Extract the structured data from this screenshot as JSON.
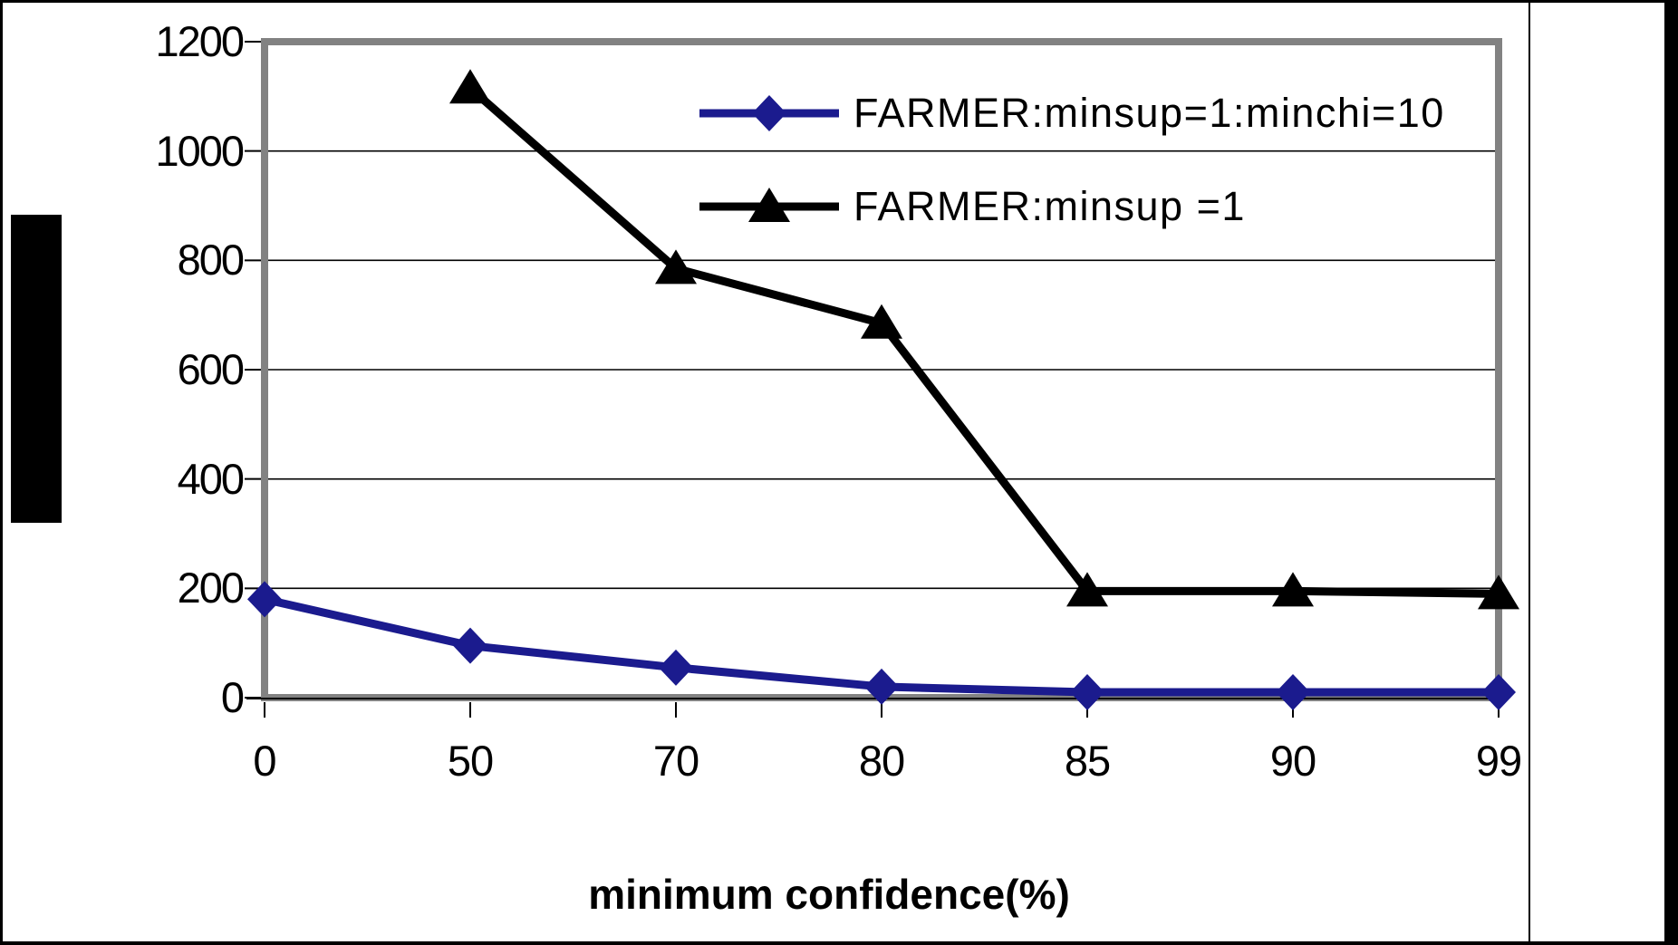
{
  "chart_data": {
    "type": "line",
    "title": "",
    "xlabel": "minimum confidence(%)",
    "ylabel_redacted": true,
    "categories": [
      "0",
      "50",
      "70",
      "80",
      "85",
      "90",
      "99"
    ],
    "ytick_labels": [
      "1200",
      "1000",
      "800",
      "600",
      "400",
      "200",
      "0"
    ],
    "ylim": [
      0,
      1200
    ],
    "grid": "horizontal",
    "legend_position": "inside-top-right",
    "series": [
      {
        "name": "FARMER:minsup=1:minchi=10",
        "marker": "diamond",
        "color": "#1b1b8e",
        "values": [
          180,
          95,
          55,
          20,
          10,
          10,
          10
        ]
      },
      {
        "name": "FARMER:minsup =1",
        "marker": "triangle",
        "color": "#000000",
        "values": [
          null,
          1115,
          785,
          685,
          195,
          195,
          190
        ]
      }
    ]
  },
  "colors": {
    "plot_border": "#828282",
    "gridline": "#000000",
    "frame": "#000000",
    "background": "#ffffff"
  }
}
